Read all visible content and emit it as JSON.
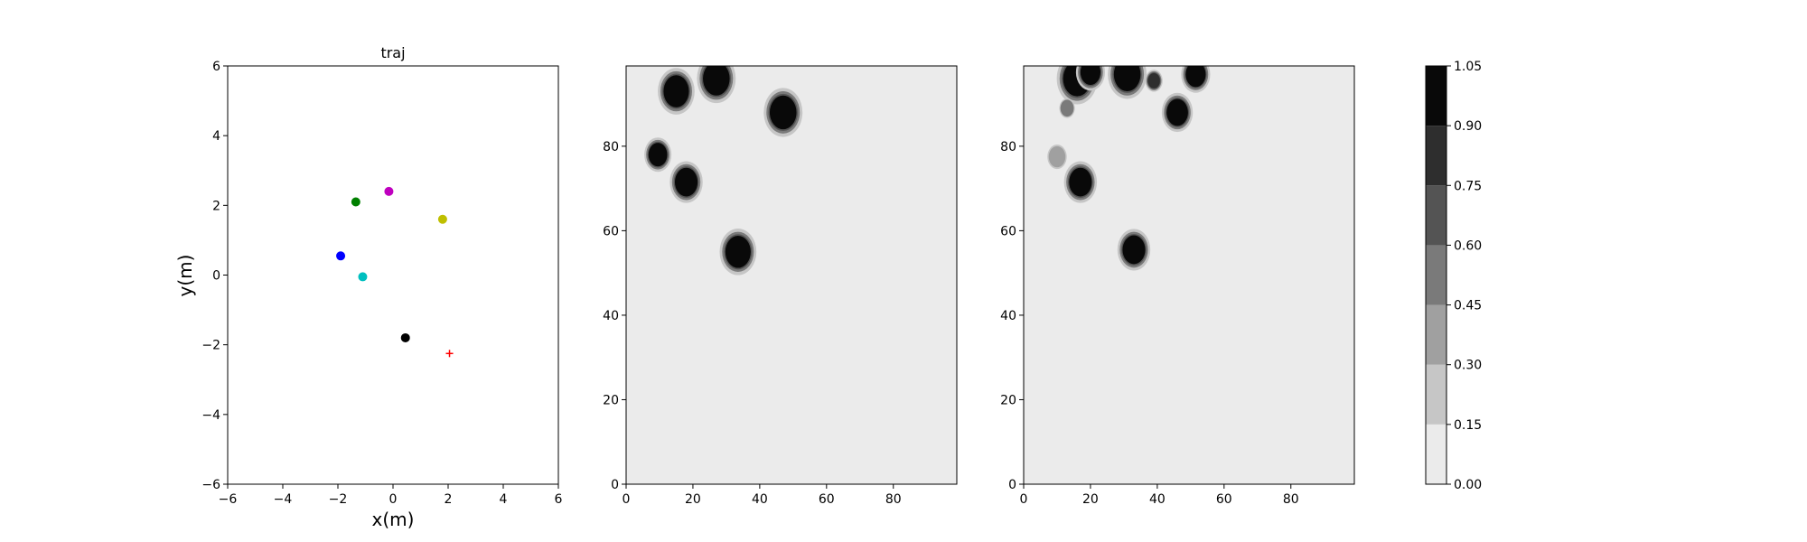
{
  "chart_data": [
    {
      "type": "scatter",
      "title": "traj",
      "xlabel": "x(m)",
      "ylabel": "y(m)",
      "xlim": [
        -6,
        6
      ],
      "ylim": [
        -6,
        6
      ],
      "xticks": [
        "−6",
        "−4",
        "−2",
        "0",
        "2",
        "4",
        "6"
      ],
      "yticks": [
        "−6",
        "−4",
        "−2",
        "0",
        "2",
        "4",
        "6"
      ],
      "grid": false,
      "points": [
        {
          "x": -1.35,
          "y": 2.1,
          "color": "#008000",
          "marker": "circle"
        },
        {
          "x": -0.15,
          "y": 2.4,
          "color": "#bf00bf",
          "marker": "circle"
        },
        {
          "x": 1.8,
          "y": 1.6,
          "color": "#bfbf00",
          "marker": "circle"
        },
        {
          "x": -1.9,
          "y": 0.55,
          "color": "#0000ff",
          "marker": "circle"
        },
        {
          "x": -1.1,
          "y": -0.05,
          "color": "#00bfbf",
          "marker": "circle"
        },
        {
          "x": 0.45,
          "y": -1.8,
          "color": "#000000",
          "marker": "circle"
        },
        {
          "x": 2.05,
          "y": -2.25,
          "color": "#ff0000",
          "marker": "plus"
        }
      ]
    },
    {
      "type": "heatmap",
      "title": "",
      "xlim": [
        0,
        99
      ],
      "ylim": [
        0,
        99
      ],
      "xticks": [
        "0",
        "20",
        "40",
        "60",
        "80"
      ],
      "yticks": [
        "0",
        "20",
        "40",
        "60",
        "80"
      ],
      "background_level": 0.0,
      "blobs": [
        {
          "x": 15,
          "y": 93,
          "r": 3.8,
          "level": 1.0
        },
        {
          "x": 27,
          "y": 96,
          "r": 4.0,
          "level": 1.0
        },
        {
          "x": 47,
          "y": 88,
          "r": 4.0,
          "level": 1.0
        },
        {
          "x": 9.5,
          "y": 78,
          "r": 2.8,
          "level": 1.0
        },
        {
          "x": 18,
          "y": 71.5,
          "r": 3.4,
          "level": 1.0
        },
        {
          "x": 33.5,
          "y": 55,
          "r": 3.8,
          "level": 1.0
        }
      ]
    },
    {
      "type": "heatmap",
      "title": "",
      "xlim": [
        0,
        99
      ],
      "ylim": [
        0,
        99
      ],
      "xticks": [
        "0",
        "20",
        "40",
        "60",
        "80"
      ],
      "yticks": [
        "0",
        "20",
        "40",
        "60",
        "80"
      ],
      "background_level": 0.0,
      "blobs": [
        {
          "x": 16,
          "y": 96,
          "r": 4.2,
          "level": 1.0
        },
        {
          "x": 20,
          "y": 97.5,
          "r": 3.0,
          "level": 0.9
        },
        {
          "x": 31,
          "y": 97,
          "r": 4.0,
          "level": 1.0
        },
        {
          "x": 39,
          "y": 95.5,
          "r": 1.8,
          "level": 0.75
        },
        {
          "x": 51.5,
          "y": 97,
          "r": 3.0,
          "level": 1.0
        },
        {
          "x": 46,
          "y": 88,
          "r": 3.2,
          "level": 1.0
        },
        {
          "x": 13,
          "y": 89,
          "r": 1.6,
          "level": 0.45
        },
        {
          "x": 10,
          "y": 77.5,
          "r": 2.0,
          "level": 0.3
        },
        {
          "x": 17,
          "y": 71.5,
          "r": 3.4,
          "level": 1.0
        },
        {
          "x": 33,
          "y": 55.5,
          "r": 3.4,
          "level": 1.0
        }
      ]
    },
    {
      "type": "colorbar",
      "levels": [
        "0.00",
        "0.15",
        "0.30",
        "0.45",
        "0.60",
        "0.75",
        "0.90",
        "1.05"
      ],
      "colors": [
        "#ebebeb",
        "#c6c6c6",
        "#a0a0a0",
        "#7a7a7a",
        "#545454",
        "#2e2e2e",
        "#090909"
      ]
    }
  ]
}
